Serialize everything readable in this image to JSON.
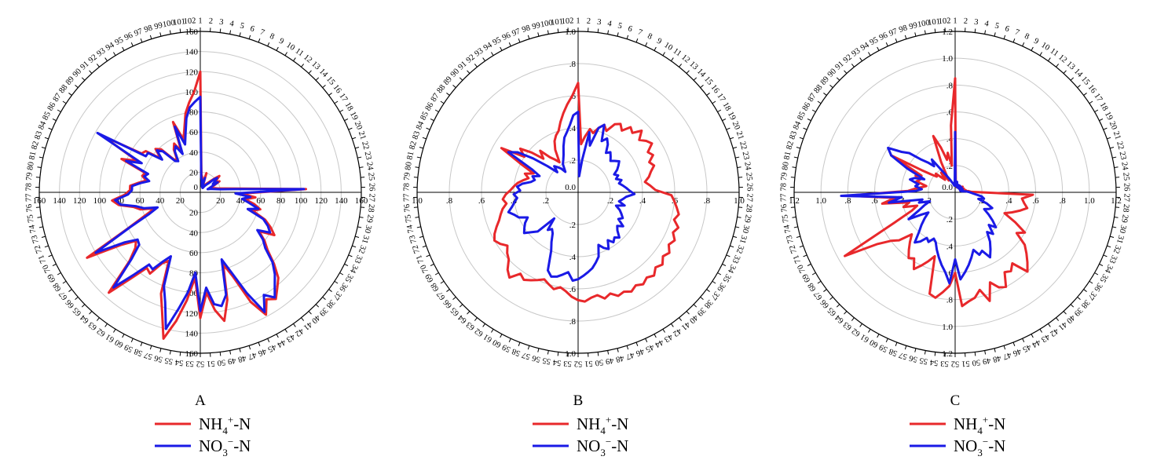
{
  "colors": {
    "nh4": "#e8282b",
    "no3": "#1a1ae6",
    "grid": "#c8c8c8",
    "axis": "#000000"
  },
  "legend": {
    "nh4": {
      "main": "NH",
      "sub": "4",
      "sup": "+",
      "tail": "-N"
    },
    "no3": {
      "main": "NO",
      "sub": "3",
      "sup": "−",
      "tail": "-N"
    }
  },
  "chart_data": [
    {
      "type": "radar",
      "panel_label": "A",
      "rmax": 160,
      "rings": [
        20,
        40,
        60,
        80,
        100,
        120,
        140,
        160
      ],
      "tick_labels": [
        "20",
        "40",
        "60",
        "80",
        "100",
        "120",
        "140",
        "160"
      ],
      "center_label": "0",
      "n_points": 102,
      "series": [
        {
          "name": "NH4+-N",
          "color": "#e8282b",
          "values": [
            120,
            18,
            15,
            10,
            8,
            20,
            8,
            6,
            5,
            8,
            10,
            12,
            15,
            20,
            25,
            20,
            18,
            22,
            15,
            10,
            12,
            15,
            18,
            25,
            40,
            105,
            40,
            55,
            45,
            55,
            62,
            55,
            70,
            78,
            85,
            70,
            80,
            88,
            102,
            115,
            122,
            130,
            125,
            138,
            120,
            90,
            75,
            110,
            130,
            118,
            100,
            125,
            85,
            108,
            130,
            150,
            125,
            108,
            75,
            80,
            95,
            92,
            110,
            135,
            98,
            85,
            80,
            95,
            130,
            80,
            60,
            48,
            62,
            68,
            82,
            88,
            75,
            70,
            70,
            62,
            55,
            60,
            58,
            85,
            70,
            112,
            70,
            68,
            52,
            62,
            58,
            42,
            40,
            50,
            55,
            45,
            75,
            55,
            65,
            80,
            90,
            100
          ]
        },
        {
          "name": "NO3--N",
          "color": "#1a1ae6",
          "values": [
            95,
            15,
            12,
            8,
            6,
            15,
            6,
            5,
            5,
            6,
            8,
            10,
            12,
            18,
            22,
            18,
            15,
            20,
            12,
            8,
            10,
            12,
            15,
            20,
            35,
            103,
            35,
            50,
            42,
            50,
            60,
            50,
            68,
            75,
            80,
            68,
            78,
            85,
            100,
            110,
            118,
            128,
            120,
            135,
            110,
            85,
            70,
            105,
            115,
            112,
            95,
            118,
            80,
            100,
            118,
            140,
            115,
            100,
            70,
            78,
            90,
            88,
            105,
            128,
            95,
            80,
            78,
            90,
            120,
            78,
            55,
            45,
            58,
            65,
            80,
            85,
            72,
            68,
            68,
            60,
            52,
            58,
            55,
            80,
            65,
            118,
            65,
            65,
            50,
            60,
            55,
            40,
            38,
            48,
            52,
            42,
            70,
            50,
            60,
            75,
            85,
            90
          ]
        }
      ]
    },
    {
      "type": "radar",
      "panel_label": "B",
      "rmax": 1.0,
      "rings": [
        0.2,
        0.4,
        0.6,
        0.8,
        1.0
      ],
      "tick_labels": [
        ".2",
        ".4",
        ".6",
        ".8",
        "1.0"
      ],
      "center_label": "0.0",
      "n_points": 102,
      "series": [
        {
          "name": "NH4+-N",
          "color": "#e8282b",
          "values": [
            0.68,
            0.3,
            0.35,
            0.4,
            0.38,
            0.42,
            0.45,
            0.42,
            0.48,
            0.5,
            0.47,
            0.52,
            0.5,
            0.55,
            0.5,
            0.53,
            0.55,
            0.5,
            0.52,
            0.48,
            0.5,
            0.47,
            0.45,
            0.42,
            0.45,
            0.48,
            0.58,
            0.6,
            0.62,
            0.64,
            0.62,
            0.66,
            0.64,
            0.67,
            0.65,
            0.68,
            0.66,
            0.69,
            0.67,
            0.7,
            0.68,
            0.7,
            0.68,
            0.7,
            0.68,
            0.69,
            0.66,
            0.68,
            0.65,
            0.66,
            0.68,
            0.67,
            0.65,
            0.62,
            0.6,
            0.62,
            0.6,
            0.58,
            0.6,
            0.62,
            0.64,
            0.62,
            0.68,
            0.65,
            0.6,
            0.58,
            0.55,
            0.58,
            0.6,
            0.58,
            0.55,
            0.52,
            0.5,
            0.48,
            0.45,
            0.47,
            0.45,
            0.42,
            0.4,
            0.38,
            0.35,
            0.32,
            0.35,
            0.3,
            0.4,
            0.55,
            0.4,
            0.45,
            0.38,
            0.3,
            0.35,
            0.28,
            0.25,
            0.22,
            0.3,
            0.35,
            0.38,
            0.4,
            0.45,
            0.5,
            0.55,
            0.6
          ]
        },
        {
          "name": "NO3--N",
          "color": "#1a1ae6",
          "values": [
            0.5,
            0.1,
            0.2,
            0.38,
            0.3,
            0.42,
            0.45,
            0.35,
            0.38,
            0.35,
            0.3,
            0.32,
            0.3,
            0.28,
            0.3,
            0.32,
            0.3,
            0.28,
            0.25,
            0.27,
            0.25,
            0.28,
            0.26,
            0.28,
            0.3,
            0.32,
            0.35,
            0.3,
            0.28,
            0.26,
            0.3,
            0.25,
            0.28,
            0.3,
            0.32,
            0.3,
            0.35,
            0.32,
            0.34,
            0.38,
            0.36,
            0.38,
            0.35,
            0.4,
            0.38,
            0.35,
            0.42,
            0.45,
            0.48,
            0.5,
            0.52,
            0.54,
            0.55,
            0.5,
            0.52,
            0.54,
            0.55,
            0.52,
            0.4,
            0.35,
            0.3,
            0.28,
            0.3,
            0.22,
            0.35,
            0.38,
            0.42,
            0.4,
            0.38,
            0.35,
            0.4,
            0.42,
            0.45,
            0.42,
            0.4,
            0.38,
            0.4,
            0.36,
            0.38,
            0.35,
            0.3,
            0.28,
            0.3,
            0.26,
            0.32,
            0.5,
            0.45,
            0.35,
            0.25,
            0.18,
            0.22,
            0.2,
            0.18,
            0.15,
            0.2,
            0.22,
            0.25,
            0.3,
            0.35,
            0.38,
            0.42,
            0.48
          ]
        }
      ]
    },
    {
      "type": "radar",
      "panel_label": "C",
      "rmax": 1.2,
      "rings": [
        0.2,
        0.4,
        0.6,
        0.8,
        1.0,
        1.2
      ],
      "tick_labels": [
        ".2",
        ".4",
        ".6",
        ".8",
        "1.0",
        "1.2"
      ],
      "center_label": "0.0",
      "n_points": 102,
      "series": [
        {
          "name": "NH4+-N",
          "color": "#e8282b",
          "values": [
            0.85,
            0.08,
            0.05,
            0.06,
            0.05,
            0.04,
            0.05,
            0.04,
            0.05,
            0.06,
            0.05,
            0.04,
            0.05,
            0.06,
            0.05,
            0.07,
            0.06,
            0.05,
            0.06,
            0.07,
            0.06,
            0.05,
            0.08,
            0.06,
            0.1,
            0.12,
            0.58,
            0.5,
            0.52,
            0.55,
            0.5,
            0.45,
            0.4,
            0.5,
            0.6,
            0.55,
            0.65,
            0.7,
            0.75,
            0.8,
            0.68,
            0.72,
            0.7,
            0.8,
            0.78,
            0.72,
            0.85,
            0.75,
            0.8,
            0.82,
            0.85,
            0.6,
            0.7,
            0.75,
            0.8,
            0.78,
            0.5,
            0.55,
            0.6,
            0.65,
            0.58,
            0.6,
            0.55,
            0.5,
            0.45,
            0.55,
            0.6,
            0.7,
            0.95,
            0.5,
            0.35,
            0.3,
            0.4,
            0.35,
            0.55,
            0.45,
            0.8,
            0.35,
            0.3,
            0.25,
            0.22,
            0.3,
            0.28,
            0.32,
            0.28,
            0.55,
            0.3,
            0.22,
            0.18,
            0.2,
            0.15,
            0.12,
            0.18,
            0.15,
            0.1,
            0.25,
            0.45,
            0.35,
            0.25,
            0.3,
            0.2,
            0.5
          ]
        },
        {
          "name": "NO3--N",
          "color": "#1a1ae6",
          "values": [
            0.45,
            0.05,
            0.06,
            0.08,
            0.06,
            0.05,
            0.04,
            0.06,
            0.05,
            0.04,
            0.05,
            0.06,
            0.05,
            0.04,
            0.05,
            0.06,
            0.05,
            0.04,
            0.05,
            0.06,
            0.05,
            0.04,
            0.06,
            0.05,
            0.08,
            0.1,
            0.12,
            0.15,
            0.2,
            0.22,
            0.18,
            0.25,
            0.3,
            0.28,
            0.25,
            0.3,
            0.35,
            0.4,
            0.35,
            0.42,
            0.38,
            0.45,
            0.5,
            0.55,
            0.48,
            0.5,
            0.45,
            0.5,
            0.55,
            0.6,
            0.65,
            0.5,
            0.68,
            0.6,
            0.55,
            0.5,
            0.45,
            0.4,
            0.38,
            0.42,
            0.4,
            0.45,
            0.48,
            0.4,
            0.35,
            0.3,
            0.25,
            0.3,
            0.4,
            0.3,
            0.25,
            0.2,
            0.28,
            0.25,
            0.5,
            0.4,
            0.85,
            0.3,
            0.25,
            0.3,
            0.28,
            0.35,
            0.32,
            0.25,
            0.4,
            0.55,
            0.6,
            0.5,
            0.45,
            0.35,
            0.3,
            0.25,
            0.3,
            0.2,
            0.15,
            0.12,
            0.1,
            0.08,
            0.07,
            0.06,
            0.05,
            0.05
          ]
        }
      ]
    }
  ]
}
